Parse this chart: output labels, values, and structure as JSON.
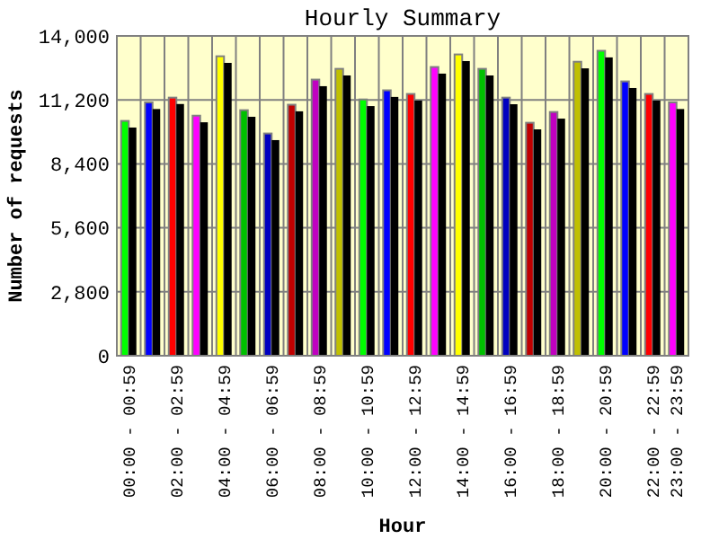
{
  "chart_data": {
    "type": "bar",
    "title": "Hourly Summary",
    "xlabel": "Hour",
    "ylabel": "Number of requests",
    "categories": [
      "00:00 - 00:59",
      null,
      "02:00 - 02:59",
      null,
      "04:00 - 04:59",
      null,
      "06:00 - 06:59",
      null,
      "08:00 - 08:59",
      null,
      "10:00 - 10:59",
      null,
      "12:00 - 12:59",
      null,
      "14:00 - 14:59",
      null,
      "16:00 - 16:59",
      null,
      "18:00 - 18:59",
      null,
      "20:00 - 20:59",
      null,
      "22:00 - 22:59",
      "23:00 - 23:59"
    ],
    "series": [
      {
        "colors": [
          "#00ff00",
          "#0000ff",
          "#ff0000",
          "#ff00ff",
          "#ffff00",
          "#00c000",
          "#0000c0",
          "#c00000",
          "#c000c0",
          "#c0c000",
          "#00ff00",
          "#0000ff",
          "#ff0000",
          "#ff00ff",
          "#ffff00",
          "#00c000",
          "#0000c0",
          "#c00000",
          "#c000c0",
          "#c0c000",
          "#00ff00",
          "#0000ff",
          "#ff0000",
          "#ff00ff"
        ],
        "values": [
          10280,
          11090,
          11300,
          10510,
          13110,
          10750,
          9730,
          10990,
          12090,
          12560,
          11220,
          11620,
          11460,
          12640,
          13190,
          12560,
          11300,
          10200,
          10670,
          12870,
          13350,
          12010,
          11460,
          11090
        ]
      },
      {
        "color": "#000000",
        "values": [
          9990,
          10800,
          11020,
          10220,
          12820,
          10460,
          9440,
          10700,
          11800,
          12270,
          10930,
          11330,
          11170,
          12350,
          12900,
          12270,
          11010,
          9910,
          10380,
          12580,
          13060,
          11720,
          11170,
          10800
        ]
      }
    ],
    "ylim": [
      0,
      14000
    ],
    "yticks": [
      {
        "value": 0,
        "label": "0"
      },
      {
        "value": 2800,
        "label": "2,800"
      },
      {
        "value": 5600,
        "label": "5,600"
      },
      {
        "value": 8400,
        "label": "8,400"
      },
      {
        "value": 11200,
        "label": "11,200"
      },
      {
        "value": 14000,
        "label": "14,000"
      }
    ],
    "grid": true
  }
}
